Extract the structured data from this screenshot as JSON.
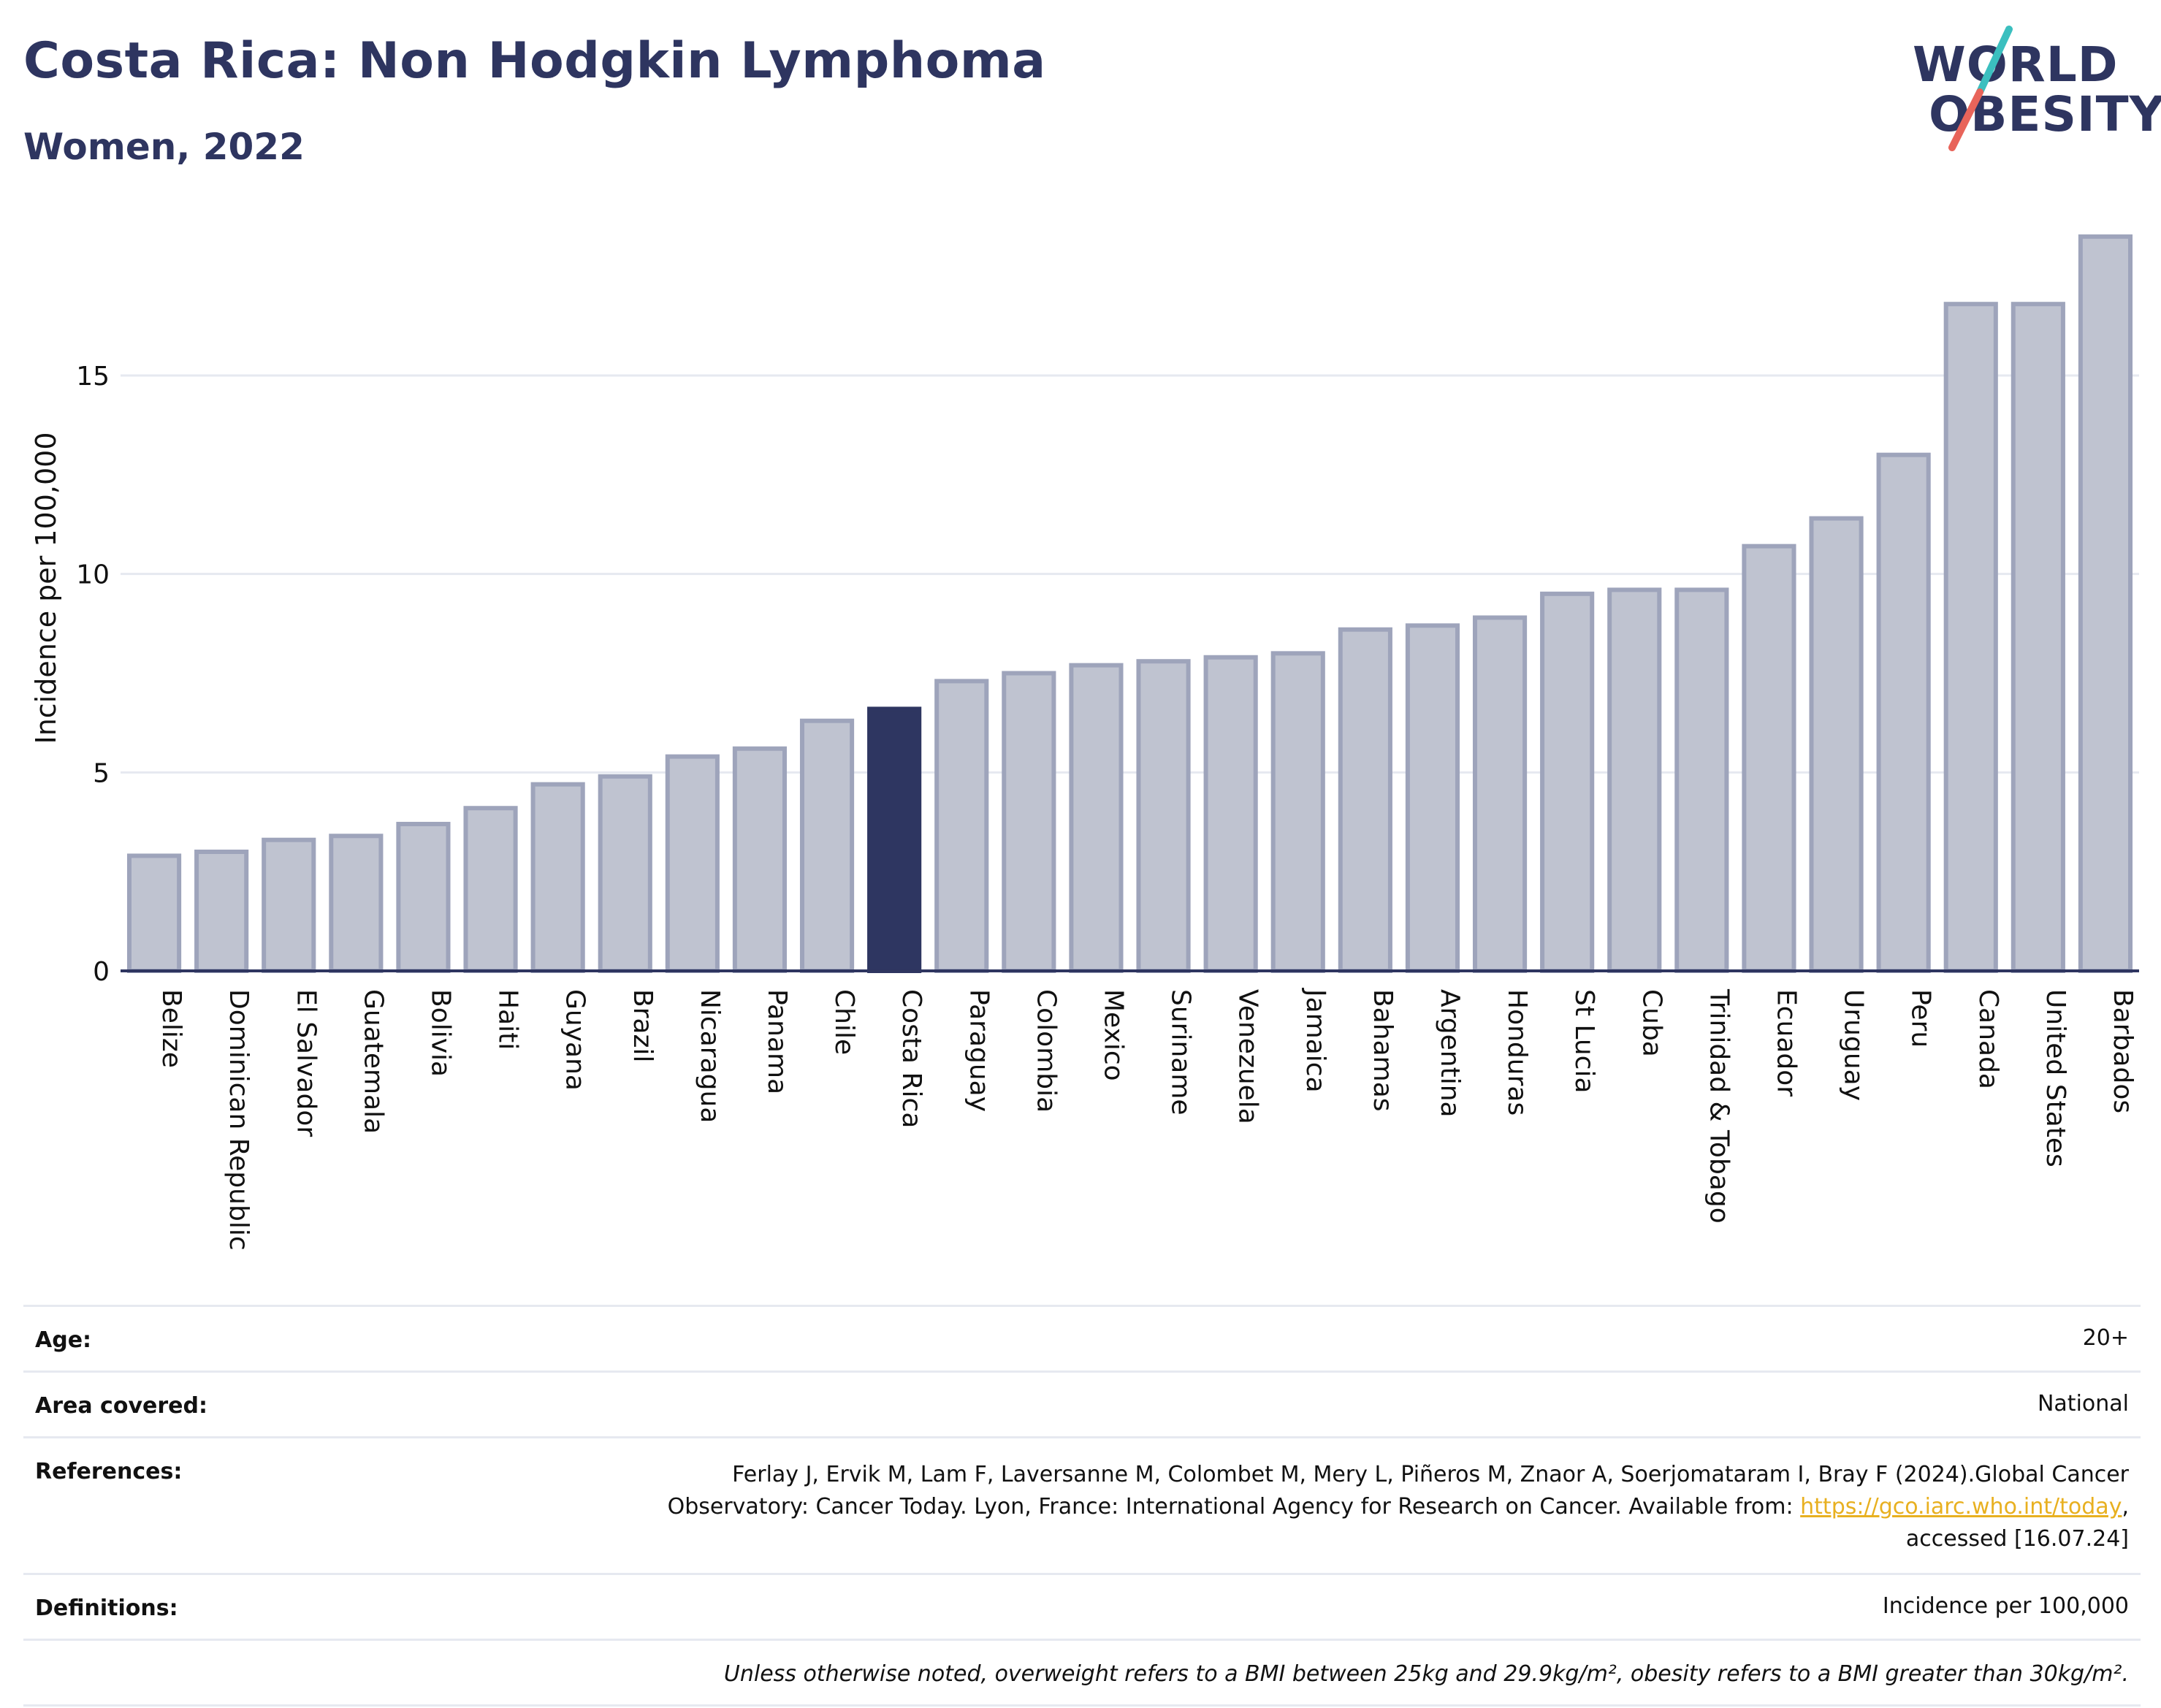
{
  "header": {
    "title": "Costa Rica: Non Hodgkin Lymphoma",
    "subtitle": "Women, 2022"
  },
  "logo": {
    "line1": "WORLD",
    "line2": "OBESITY",
    "accent_colors": [
      "#3bbfbf",
      "#e8645a"
    ]
  },
  "colors": {
    "bar": "#bfc3d0",
    "bar_stroke": "#9ea4bb",
    "highlight": "#2e3661",
    "grid": "#e6e9f0",
    "axis": "#2e3560",
    "text": "#111111"
  },
  "chart_data": {
    "type": "bar",
    "title": "",
    "xlabel": "",
    "ylabel": "Incidence per 100,000",
    "ylim": [
      0,
      18.5
    ],
    "yticks": [
      0,
      5,
      10,
      15
    ],
    "grid": true,
    "highlight": "Costa Rica",
    "categories": [
      "Belize",
      "Dominican Republic",
      "El Salvador",
      "Guatemala",
      "Bolivia",
      "Haiti",
      "Guyana",
      "Brazil",
      "Nicaragua",
      "Panama",
      "Chile",
      "Costa Rica",
      "Paraguay",
      "Colombia",
      "Mexico",
      "Suriname",
      "Venezuela",
      "Jamaica",
      "Bahamas",
      "Argentina",
      "Honduras",
      "St Lucia",
      "Cuba",
      "Trinidad & Tobago",
      "Ecuador",
      "Uruguay",
      "Peru",
      "Canada",
      "United States",
      "Barbados"
    ],
    "values": [
      2.9,
      3.0,
      3.3,
      3.4,
      3.7,
      4.1,
      4.7,
      4.9,
      5.4,
      5.6,
      6.3,
      6.6,
      7.3,
      7.5,
      7.7,
      7.8,
      7.9,
      8.0,
      8.6,
      8.7,
      8.9,
      9.5,
      9.6,
      9.6,
      10.7,
      11.4,
      13.0,
      16.8,
      16.8,
      18.5
    ]
  },
  "info": {
    "age_label": "Age:",
    "age_value": "20+",
    "area_label": "Area covered:",
    "area_value": "National",
    "references_label": "References:",
    "references_line1": "Ferlay J, Ervik M, Lam F, Laversanne M, Colombet M, Mery L, Piñeros M, Znaor A, Soerjomataram I, Bray F (2024).Global Cancer",
    "references_line2_pre": "Observatory: Cancer Today. Lyon, France: International Agency for Research on Cancer. Available from: ",
    "references_link": "https://gco.iarc.who.int/today",
    "references_line2_post": ",",
    "references_line3": "accessed [16.07.24]",
    "definitions_label": "Definitions:",
    "definitions_value": "Incidence per 100,000",
    "note": "Unless otherwise noted, overweight refers to a BMI between 25kg and 29.9kg/m², obesity refers to a BMI greater than 30kg/m²."
  }
}
